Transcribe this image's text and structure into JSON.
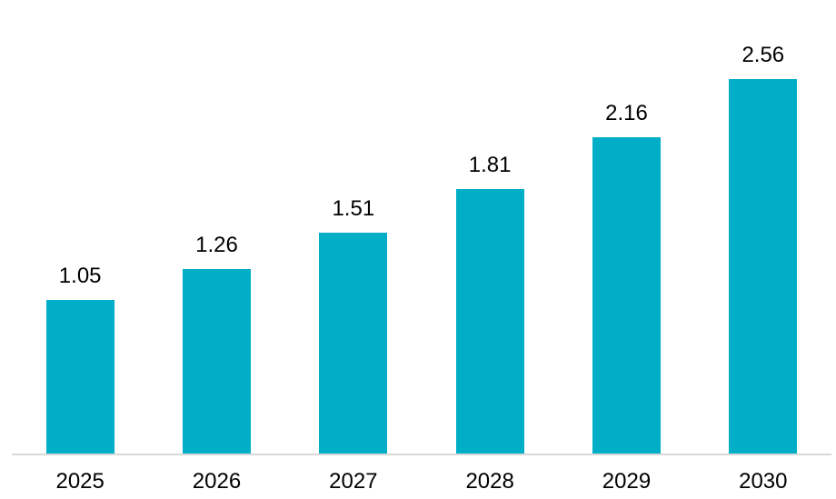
{
  "chart_data": {
    "type": "bar",
    "categories": [
      "2025",
      "2026",
      "2027",
      "2028",
      "2029",
      "2030"
    ],
    "values": [
      1.05,
      1.26,
      1.51,
      1.81,
      2.16,
      2.56
    ],
    "data_labels": [
      "1.05",
      "1.26",
      "1.51",
      "1.81",
      "2.16",
      "2.56"
    ],
    "title": "",
    "xlabel": "",
    "ylabel": "",
    "ylim": [
      0,
      2.56
    ],
    "grid": false,
    "legend": "none",
    "bar_color": "#00AEC7",
    "label_color": "#000000",
    "axis_line_color": "#D9D9D9",
    "background_color": "#FFFFFF"
  }
}
